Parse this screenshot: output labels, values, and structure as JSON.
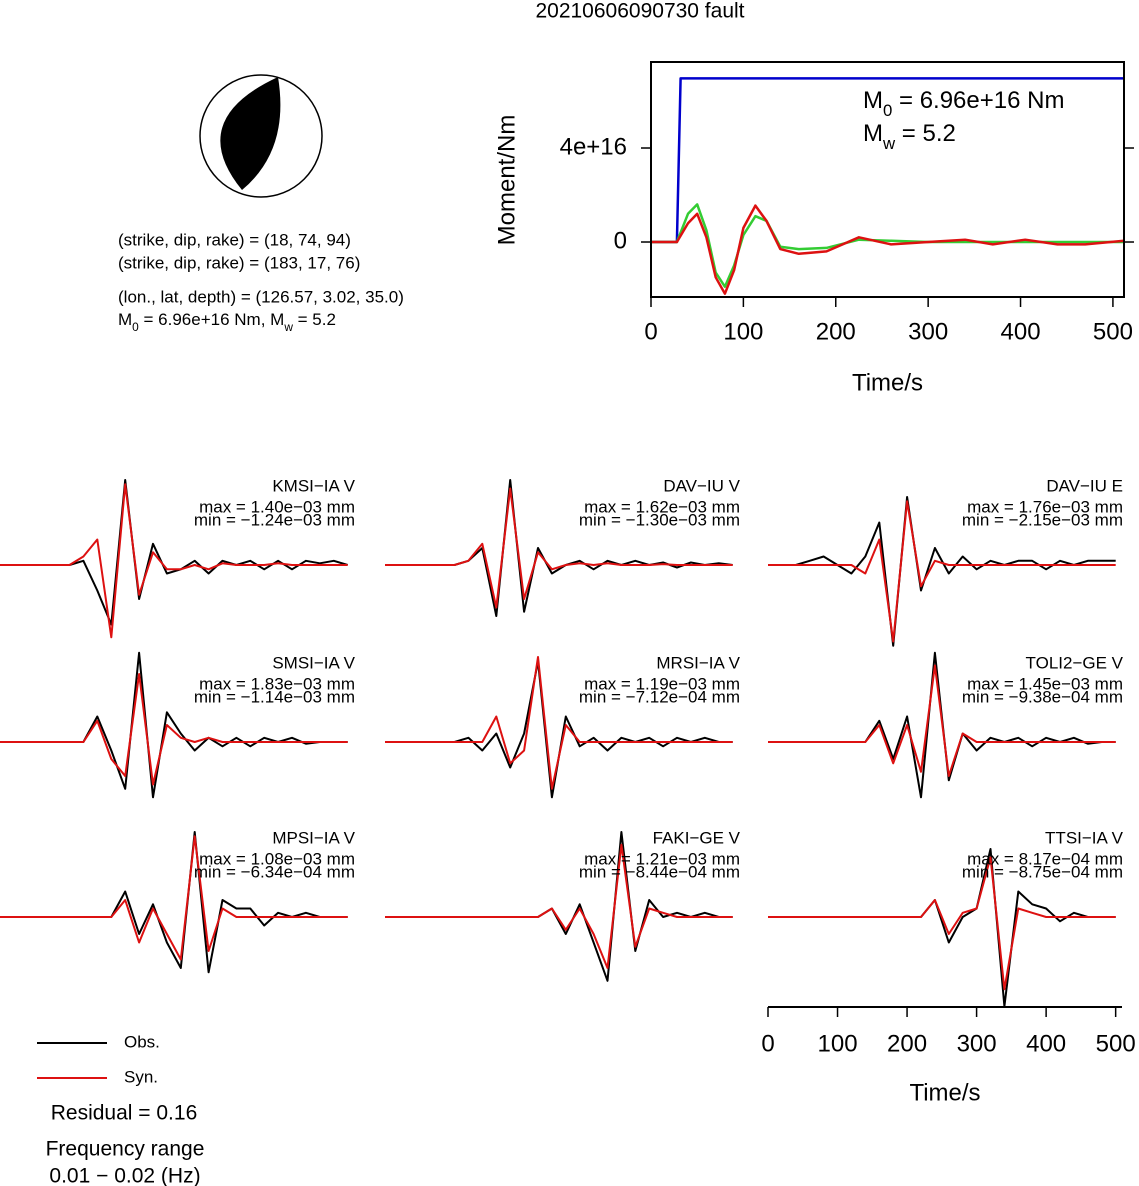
{
  "title": "20210606090730 fault",
  "mechanism": {
    "planes": [
      "(strike, dip, rake) = (18, 74, 94)",
      "(strike, dip, rake) = (183, 17, 76)"
    ],
    "location": "(lon., lat, depth) = (126.57, 3.02, 35.0)",
    "magnitude": [
      {
        "symbol": "M",
        "sub": "0",
        "text": " = 6.96e+16 Nm, "
      },
      {
        "symbol": "M",
        "sub": "w",
        "text": " = 5.2"
      }
    ]
  },
  "chart_data": [
    {
      "type": "line",
      "xlabel": "Time/s",
      "ylabel": "Moment/Nm",
      "xlim": [
        0,
        512
      ],
      "ylim": [
        -2.34e+16,
        7.66e+16
      ],
      "xticks": [
        0,
        100,
        200,
        300,
        400,
        500
      ],
      "yticks": [
        0,
        {
          "value": 4e+16,
          "label": "4e+16"
        }
      ],
      "annotations": [
        {
          "symbol": "M",
          "sub": "0",
          "text": " = 6.96e+16 Nm"
        },
        {
          "symbol": "M",
          "sub": "w",
          "text": " = 5.2"
        }
      ],
      "series": [
        {
          "color": "#0000cc",
          "x": [
            0,
            28,
            32,
            512
          ],
          "values": [
            0,
            0,
            6.96e+16,
            6.96e+16
          ]
        },
        {
          "color": "#33cc33",
          "x": [
            0,
            28,
            40,
            50,
            60,
            70,
            80,
            90,
            100,
            113,
            125,
            140,
            160,
            190,
            225,
            260,
            300,
            340,
            370,
            405,
            440,
            470,
            512
          ],
          "values": [
            0,
            0,
            1.2e+16,
            1.6e+16,
            5000000000000000.0,
            -1.3e+16,
            -1.9e+16,
            -1e+16,
            3000000000000000.0,
            1.1e+16,
            9000000000000000.0,
            -2000000000000000.0,
            -3000000000000000.0,
            -2500000000000000.0,
            1000000000000000.0,
            500000000000000.0,
            0,
            0,
            0,
            0,
            0,
            0,
            0
          ]
        },
        {
          "color": "#dd1111",
          "x": [
            0,
            28,
            40,
            50,
            60,
            70,
            80,
            90,
            100,
            113,
            125,
            140,
            160,
            190,
            225,
            260,
            300,
            340,
            370,
            405,
            440,
            470,
            512
          ],
          "values": [
            0,
            0,
            8000000000000000.0,
            1.2e+16,
            2000000000000000.0,
            -1.5e+16,
            -2.2e+16,
            -1.2e+16,
            6000000000000000.0,
            1.55e+16,
            9000000000000000.0,
            -3000000000000000.0,
            -5000000000000000.0,
            -4000000000000000.0,
            2000000000000000.0,
            -1000000000000000.0,
            0,
            1000000000000000.0,
            -1000000000000000.0,
            1000000000000000.0,
            -1000000000000000.0,
            -1000000000000000.0,
            500000000000000.0
          ]
        }
      ]
    },
    {
      "type": "waveform",
      "title": "KMSI−IA V",
      "annotations": [
        "max = 1.40e−03 mm",
        "min = −1.24e−03 mm"
      ],
      "xlim": [
        0,
        512
      ],
      "ylim": [
        -1,
        1
      ],
      "x": [
        0,
        20,
        40,
        60,
        80,
        100,
        120,
        140,
        160,
        180,
        200,
        220,
        240,
        260,
        280,
        300,
        320,
        340,
        360,
        380,
        400,
        420,
        440,
        460,
        480,
        500
      ],
      "series": [
        {
          "name": "Obs.",
          "color": "#000000",
          "values": [
            0,
            0,
            0,
            0,
            0,
            0,
            0.05,
            -0.3,
            -0.7,
            1.0,
            -0.4,
            0.25,
            -0.1,
            -0.05,
            0.05,
            -0.1,
            0.05,
            0,
            0.05,
            -0.05,
            0.05,
            -0.05,
            0.05,
            0.02,
            0.05,
            0
          ]
        },
        {
          "name": "Syn.",
          "color": "#dd1111",
          "values": [
            0,
            0,
            0,
            0,
            0,
            0,
            0.1,
            0.3,
            -0.85,
            0.95,
            -0.35,
            0.15,
            -0.05,
            -0.05,
            0,
            -0.05,
            0.02,
            0,
            0,
            0,
            0.02,
            0,
            0,
            0,
            0,
            0
          ]
        }
      ]
    },
    {
      "type": "waveform",
      "title": "DAV−IU V",
      "annotations": [
        "max = 1.62e−03 mm",
        "min = −1.30e−03 mm"
      ],
      "xlim": [
        0,
        512
      ],
      "ylim": [
        -1,
        1
      ],
      "x": [
        0,
        20,
        40,
        60,
        80,
        100,
        120,
        140,
        160,
        180,
        200,
        220,
        240,
        260,
        280,
        300,
        320,
        340,
        360,
        380,
        400,
        420,
        440,
        460,
        480,
        500
      ],
      "series": [
        {
          "color": "#000000",
          "values": [
            0,
            0,
            0,
            0,
            0,
            0,
            0.05,
            0.2,
            -0.6,
            1.0,
            -0.55,
            0.2,
            -0.1,
            0,
            0.05,
            -0.05,
            0.05,
            0,
            0.05,
            0,
            0.03,
            -0.03,
            0.03,
            0,
            0.02,
            0
          ]
        },
        {
          "color": "#dd1111",
          "values": [
            0,
            0,
            0,
            0,
            0,
            0,
            0.05,
            0.25,
            -0.5,
            0.9,
            -0.4,
            0.15,
            -0.05,
            0,
            0.02,
            0,
            0.02,
            0,
            0,
            0,
            0.01,
            0,
            0,
            0,
            0,
            0
          ]
        }
      ]
    },
    {
      "type": "waveform",
      "title": "DAV−IU E",
      "annotations": [
        "max = 1.76e−03 mm",
        "min = −2.15e−03 mm"
      ],
      "xlim": [
        0,
        512
      ],
      "ylim": [
        -1,
        1
      ],
      "x": [
        0,
        20,
        40,
        60,
        80,
        100,
        120,
        140,
        160,
        180,
        200,
        220,
        240,
        260,
        280,
        300,
        320,
        340,
        360,
        380,
        400,
        420,
        440,
        460,
        480,
        500
      ],
      "series": [
        {
          "color": "#000000",
          "values": [
            0,
            0,
            0,
            0.05,
            0.1,
            0,
            -0.1,
            0.1,
            0.5,
            -0.95,
            0.8,
            -0.3,
            0.2,
            -0.1,
            0.1,
            -0.05,
            0.05,
            0,
            0.05,
            0.05,
            -0.05,
            0.05,
            0,
            0.05,
            0.05,
            0.05
          ]
        },
        {
          "color": "#dd1111",
          "values": [
            0,
            0,
            0,
            0,
            0,
            0,
            0,
            -0.1,
            0.3,
            -0.9,
            0.75,
            -0.25,
            0.05,
            0,
            0,
            0,
            0,
            0,
            0,
            0,
            0,
            0,
            0,
            0,
            0,
            0
          ]
        }
      ]
    },
    {
      "type": "waveform",
      "title": "SMSI−IA V",
      "annotations": [
        "max = 1.83e−03 mm",
        "min = −1.14e−03 mm"
      ],
      "xlim": [
        0,
        512
      ],
      "ylim": [
        -1,
        1
      ],
      "x": [
        0,
        20,
        40,
        60,
        80,
        100,
        120,
        140,
        160,
        180,
        200,
        220,
        240,
        260,
        280,
        300,
        320,
        340,
        360,
        380,
        400,
        420,
        440,
        460,
        480,
        500
      ],
      "series": [
        {
          "color": "#000000",
          "values": [
            0,
            0,
            0,
            0,
            0,
            0,
            0,
            0.3,
            -0.1,
            -0.55,
            1.05,
            -0.65,
            0.35,
            0.1,
            -0.1,
            0.05,
            -0.05,
            0.05,
            -0.05,
            0.05,
            0,
            0.05,
            -0.02,
            0,
            0,
            0
          ]
        },
        {
          "color": "#dd1111",
          "values": [
            0,
            0,
            0,
            0,
            0,
            0,
            0,
            0.25,
            -0.2,
            -0.4,
            0.8,
            -0.5,
            0.2,
            0.05,
            0,
            0.05,
            0,
            0,
            0,
            0,
            0,
            0,
            0,
            0,
            0,
            0
          ]
        }
      ]
    },
    {
      "type": "waveform",
      "title": "MRSI−IA V",
      "annotations": [
        "max = 1.19e−03 mm",
        "min = −7.12e−04 mm"
      ],
      "xlim": [
        0,
        512
      ],
      "ylim": [
        -1,
        1
      ],
      "x": [
        0,
        20,
        40,
        60,
        80,
        100,
        120,
        140,
        160,
        180,
        200,
        220,
        240,
        260,
        280,
        300,
        320,
        340,
        360,
        380,
        400,
        420,
        440,
        460,
        480,
        500
      ],
      "series": [
        {
          "color": "#000000",
          "values": [
            0,
            0,
            0,
            0,
            0,
            0,
            0.05,
            -0.1,
            0.1,
            -0.3,
            0.1,
            0.95,
            -0.65,
            0.3,
            -0.05,
            0.05,
            -0.1,
            0.05,
            0,
            0.05,
            -0.05,
            0.05,
            0,
            0.05,
            0,
            0
          ]
        },
        {
          "color": "#dd1111",
          "values": [
            0,
            0,
            0,
            0,
            0,
            0,
            0,
            0,
            0.3,
            -0.25,
            -0.1,
            1.0,
            -0.55,
            0.2,
            0,
            0,
            0,
            0,
            0,
            0,
            0,
            0,
            0,
            0,
            0,
            0
          ]
        }
      ]
    },
    {
      "type": "waveform",
      "title": "TOLI2−GE V",
      "annotations": [
        "max = 1.45e−03 mm",
        "min = −9.38e−04 mm"
      ],
      "xlim": [
        0,
        512
      ],
      "ylim": [
        -1,
        1
      ],
      "x": [
        0,
        20,
        40,
        60,
        80,
        100,
        120,
        140,
        160,
        180,
        200,
        220,
        240,
        260,
        280,
        300,
        320,
        340,
        360,
        380,
        400,
        420,
        440,
        460,
        480,
        500
      ],
      "series": [
        {
          "color": "#000000",
          "values": [
            0,
            0,
            0,
            0,
            0,
            0,
            0,
            0,
            0.25,
            -0.2,
            0.3,
            -0.65,
            1.05,
            -0.45,
            0.1,
            -0.1,
            0.05,
            0,
            0.05,
            -0.05,
            0.05,
            0,
            0.05,
            -0.02,
            0,
            0
          ]
        },
        {
          "color": "#dd1111",
          "values": [
            0,
            0,
            0,
            0,
            0,
            0,
            0,
            0,
            0.2,
            -0.25,
            0.2,
            -0.35,
            0.9,
            -0.4,
            0.1,
            0,
            0,
            0,
            0,
            0,
            0,
            0,
            0,
            0,
            0,
            0
          ]
        }
      ]
    },
    {
      "type": "waveform",
      "title": "MPSI−IA V",
      "annotations": [
        "max = 1.08e−03 mm",
        "min = −6.34e−04 mm"
      ],
      "xlim": [
        0,
        512
      ],
      "ylim": [
        -1,
        1
      ],
      "x": [
        0,
        20,
        40,
        60,
        80,
        100,
        120,
        140,
        160,
        180,
        200,
        220,
        240,
        260,
        280,
        300,
        320,
        340,
        360,
        380,
        400,
        420,
        440,
        460,
        480,
        500
      ],
      "series": [
        {
          "color": "#000000",
          "values": [
            0,
            0,
            0,
            0,
            0,
            0,
            0,
            0,
            0,
            0.3,
            -0.2,
            0.15,
            -0.3,
            -0.6,
            1.0,
            -0.65,
            0.2,
            0.1,
            0.1,
            -0.1,
            0.05,
            0,
            0.05,
            0,
            0,
            0
          ]
        },
        {
          "color": "#dd1111",
          "values": [
            0,
            0,
            0,
            0,
            0,
            0,
            0,
            0,
            0,
            0.2,
            -0.3,
            0.1,
            -0.2,
            -0.5,
            0.95,
            -0.4,
            0.1,
            0,
            0,
            0,
            0,
            0,
            0,
            0,
            0,
            0
          ]
        }
      ]
    },
    {
      "type": "waveform",
      "title": "FAKI−GE V",
      "annotations": [
        "max = 1.21e−03 mm",
        "min = −8.44e−04 mm"
      ],
      "xlim": [
        0,
        512
      ],
      "ylim": [
        -1,
        1
      ],
      "x": [
        0,
        20,
        40,
        60,
        80,
        100,
        120,
        140,
        160,
        180,
        200,
        220,
        240,
        260,
        280,
        300,
        320,
        340,
        360,
        380,
        400,
        420,
        440,
        460,
        480,
        500
      ],
      "series": [
        {
          "color": "#000000",
          "values": [
            0,
            0,
            0,
            0,
            0,
            0,
            0,
            0,
            0,
            0,
            0,
            0,
            0.1,
            -0.2,
            0.15,
            -0.3,
            -0.75,
            1.0,
            -0.4,
            0.2,
            0,
            0.05,
            0,
            0.05,
            0,
            0
          ]
        },
        {
          "color": "#dd1111",
          "values": [
            0,
            0,
            0,
            0,
            0,
            0,
            0,
            0,
            0,
            0,
            0,
            0,
            0.1,
            -0.15,
            0.1,
            -0.2,
            -0.6,
            0.85,
            -0.35,
            0.1,
            0.05,
            0,
            0,
            0,
            0,
            0
          ]
        }
      ]
    },
    {
      "type": "waveform",
      "title": "TTSI−IA V",
      "annotations": [
        "max = 8.17e−04 mm",
        "min = −8.75e−04 mm"
      ],
      "xlabel": "Time/s",
      "xlim": [
        0,
        512
      ],
      "ylim": [
        -1,
        1
      ],
      "xticks": [
        0,
        100,
        200,
        300,
        400,
        500
      ],
      "x": [
        0,
        20,
        40,
        60,
        80,
        100,
        120,
        140,
        160,
        180,
        200,
        220,
        240,
        260,
        280,
        300,
        320,
        340,
        360,
        380,
        400,
        420,
        440,
        460,
        480,
        500
      ],
      "series": [
        {
          "color": "#000000",
          "values": [
            0,
            0,
            0,
            0,
            0,
            0,
            0,
            0,
            0,
            0,
            0,
            0,
            0.2,
            -0.3,
            0,
            0.1,
            0.8,
            -1.05,
            0.3,
            0.15,
            0.1,
            -0.05,
            0.05,
            0,
            0,
            0
          ]
        },
        {
          "color": "#dd1111",
          "values": [
            0,
            0,
            0,
            0,
            0,
            0,
            0,
            0,
            0,
            0,
            0,
            0,
            0.2,
            -0.2,
            0.05,
            0.1,
            0.7,
            -0.85,
            0.1,
            0.05,
            0,
            0,
            0,
            0,
            0,
            0
          ]
        }
      ]
    }
  ],
  "fit": {
    "residual": "Residual = 0.16",
    "frequency": [
      "Frequency range",
      "0.01 − 0.02 (Hz)"
    ]
  }
}
